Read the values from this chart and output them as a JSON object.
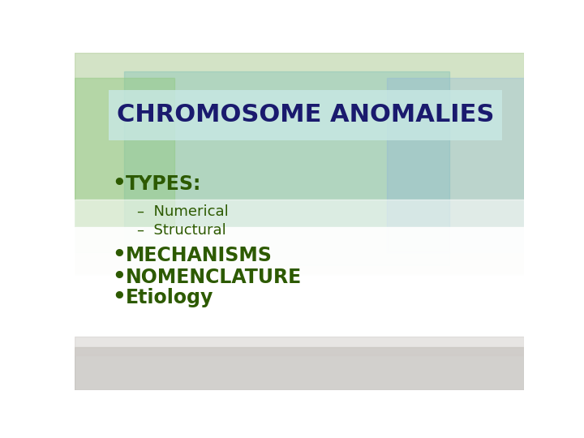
{
  "title": "CHROMOSOME ANOMALIES",
  "title_color": "#1a1a6e",
  "title_bg_color": "#c8e8e4",
  "title_bg_alpha": 0.82,
  "bullet_color": "#2d5a00",
  "sub_color": "#2d5a00",
  "title_fontsize": 22,
  "bullet_main_fontsize": 17,
  "bullet_sub_fontsize": 13,
  "items": [
    {
      "type": "bullet",
      "text": "TYPES:",
      "bold": true,
      "fontsize": 17
    },
    {
      "type": "sub",
      "text": "–  Numerical",
      "bold": false,
      "fontsize": 13
    },
    {
      "type": "sub",
      "text": "–  Structural",
      "bold": false,
      "fontsize": 13
    },
    {
      "type": "bullet",
      "text": "MECHANISMS",
      "bold": true,
      "fontsize": 17
    },
    {
      "type": "bullet",
      "text": "NOMENCLATURE",
      "bold": true,
      "fontsize": 17
    },
    {
      "type": "bullet",
      "text": "Etiology",
      "bold": true,
      "fontsize": 17
    }
  ],
  "bg_top": "#b8d8b0",
  "bg_teal": "#a0ccc4",
  "bg_white": "#f8fcf8",
  "bg_gray_light": "#d4d0cc",
  "bg_gray_dark": "#b8b4b0"
}
